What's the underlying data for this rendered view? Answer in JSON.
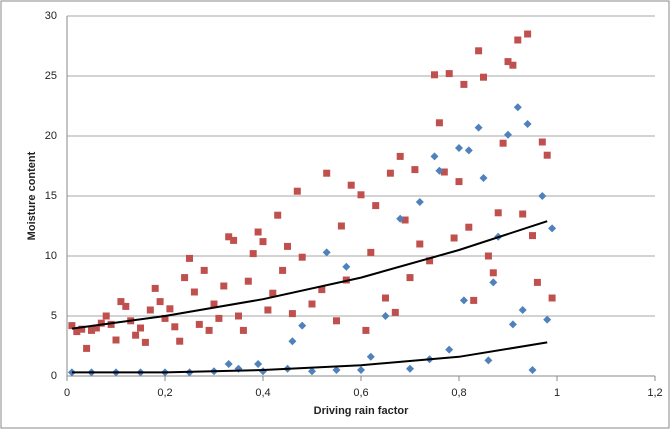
{
  "chart_data": {
    "type": "scatter",
    "x_label": "Driving rain factor",
    "y_label": "Moisture content",
    "xlim": [
      0,
      1.2
    ],
    "ylim": [
      0,
      30
    ],
    "xticks": [
      0,
      {
        "value": 0.2,
        "label": "0,2"
      },
      {
        "value": 0.4,
        "label": "0,4"
      },
      {
        "value": 0.6,
        "label": "0,6"
      },
      {
        "value": 0.8,
        "label": "0,8"
      },
      1,
      {
        "value": 1.2,
        "label": "1,2"
      }
    ],
    "yticks": [
      0,
      5,
      10,
      15,
      20,
      25,
      30
    ],
    "grid": true,
    "series": [
      {
        "marker": "square",
        "color": "#c0504d",
        "x": [
          0.01,
          0.02,
          0.03,
          0.04,
          0.05,
          0.06,
          0.07,
          0.08,
          0.09,
          0.1,
          0.11,
          0.12,
          0.13,
          0.14,
          0.15,
          0.16,
          0.17,
          0.18,
          0.19,
          0.2,
          0.21,
          0.22,
          0.23,
          0.24,
          0.25,
          0.26,
          0.27,
          0.28,
          0.29,
          0.3,
          0.31,
          0.32,
          0.33,
          0.34,
          0.35,
          0.36,
          0.37,
          0.38,
          0.39,
          0.4,
          0.41,
          0.42,
          0.43,
          0.44,
          0.45,
          0.46,
          0.47,
          0.48,
          0.5,
          0.52,
          0.53,
          0.55,
          0.56,
          0.57,
          0.58,
          0.6,
          0.61,
          0.62,
          0.63,
          0.65,
          0.66,
          0.67,
          0.68,
          0.69,
          0.7,
          0.71,
          0.72,
          0.74,
          0.75,
          0.76,
          0.77,
          0.78,
          0.79,
          0.8,
          0.81,
          0.82,
          0.83,
          0.84,
          0.85,
          0.86,
          0.87,
          0.88,
          0.89,
          0.9,
          0.91,
          0.92,
          0.93,
          0.94,
          0.95,
          0.96,
          0.97,
          0.98,
          0.99
        ],
        "values": [
          4.2,
          3.7,
          3.9,
          2.3,
          3.8,
          4.0,
          4.4,
          5.0,
          4.3,
          3.0,
          6.2,
          5.8,
          4.6,
          3.4,
          4.0,
          2.8,
          5.5,
          7.3,
          6.2,
          4.8,
          5.6,
          4.1,
          2.9,
          8.2,
          9.8,
          7.0,
          4.3,
          8.8,
          3.8,
          6.0,
          4.8,
          7.5,
          11.6,
          11.3,
          5.0,
          3.8,
          7.9,
          10.2,
          12.0,
          11.2,
          5.5,
          6.9,
          13.4,
          8.8,
          10.8,
          5.2,
          15.4,
          9.9,
          6.0,
          7.2,
          16.9,
          4.6,
          12.5,
          8.0,
          15.9,
          15.1,
          3.8,
          10.3,
          14.2,
          6.5,
          16.9,
          5.3,
          18.3,
          13.0,
          8.2,
          17.2,
          11.0,
          9.6,
          25.1,
          21.1,
          17.0,
          25.2,
          11.5,
          16.2,
          24.3,
          12.4,
          6.3,
          27.1,
          24.9,
          10.0,
          8.6,
          13.6,
          19.4,
          26.2,
          25.9,
          28.0,
          13.5,
          28.5,
          11.7,
          7.8,
          19.5,
          18.4,
          6.5
        ]
      },
      {
        "marker": "diamond",
        "color": "#4f81bd",
        "x": [
          0.01,
          0.05,
          0.1,
          0.15,
          0.2,
          0.25,
          0.3,
          0.33,
          0.35,
          0.39,
          0.4,
          0.45,
          0.46,
          0.48,
          0.5,
          0.53,
          0.55,
          0.57,
          0.6,
          0.62,
          0.65,
          0.68,
          0.7,
          0.72,
          0.74,
          0.75,
          0.76,
          0.78,
          0.8,
          0.81,
          0.82,
          0.84,
          0.85,
          0.86,
          0.87,
          0.88,
          0.9,
          0.91,
          0.92,
          0.93,
          0.94,
          0.95,
          0.97,
          0.98,
          0.99
        ],
        "values": [
          0.3,
          0.3,
          0.3,
          0.3,
          0.3,
          0.3,
          0.4,
          1.0,
          0.6,
          1.0,
          0.4,
          0.6,
          2.9,
          4.2,
          0.4,
          10.3,
          0.5,
          9.1,
          0.5,
          1.6,
          5.0,
          13.1,
          0.6,
          14.5,
          1.4,
          18.3,
          17.1,
          2.2,
          19.0,
          6.3,
          18.8,
          20.7,
          16.5,
          1.3,
          7.8,
          11.6,
          20.1,
          4.3,
          22.4,
          5.5,
          21.0,
          0.5,
          15.0,
          4.7,
          12.3
        ]
      }
    ],
    "trendlines": [
      {
        "color": "#000000",
        "x": [
          0.01,
          0.2,
          0.4,
          0.6,
          0.8,
          0.98
        ],
        "values": [
          3.95,
          5.0,
          6.4,
          8.2,
          10.5,
          12.9
        ]
      },
      {
        "color": "#000000",
        "x": [
          0.01,
          0.2,
          0.4,
          0.6,
          0.8,
          0.98
        ],
        "values": [
          0.3,
          0.3,
          0.5,
          0.9,
          1.6,
          2.8
        ]
      }
    ]
  }
}
